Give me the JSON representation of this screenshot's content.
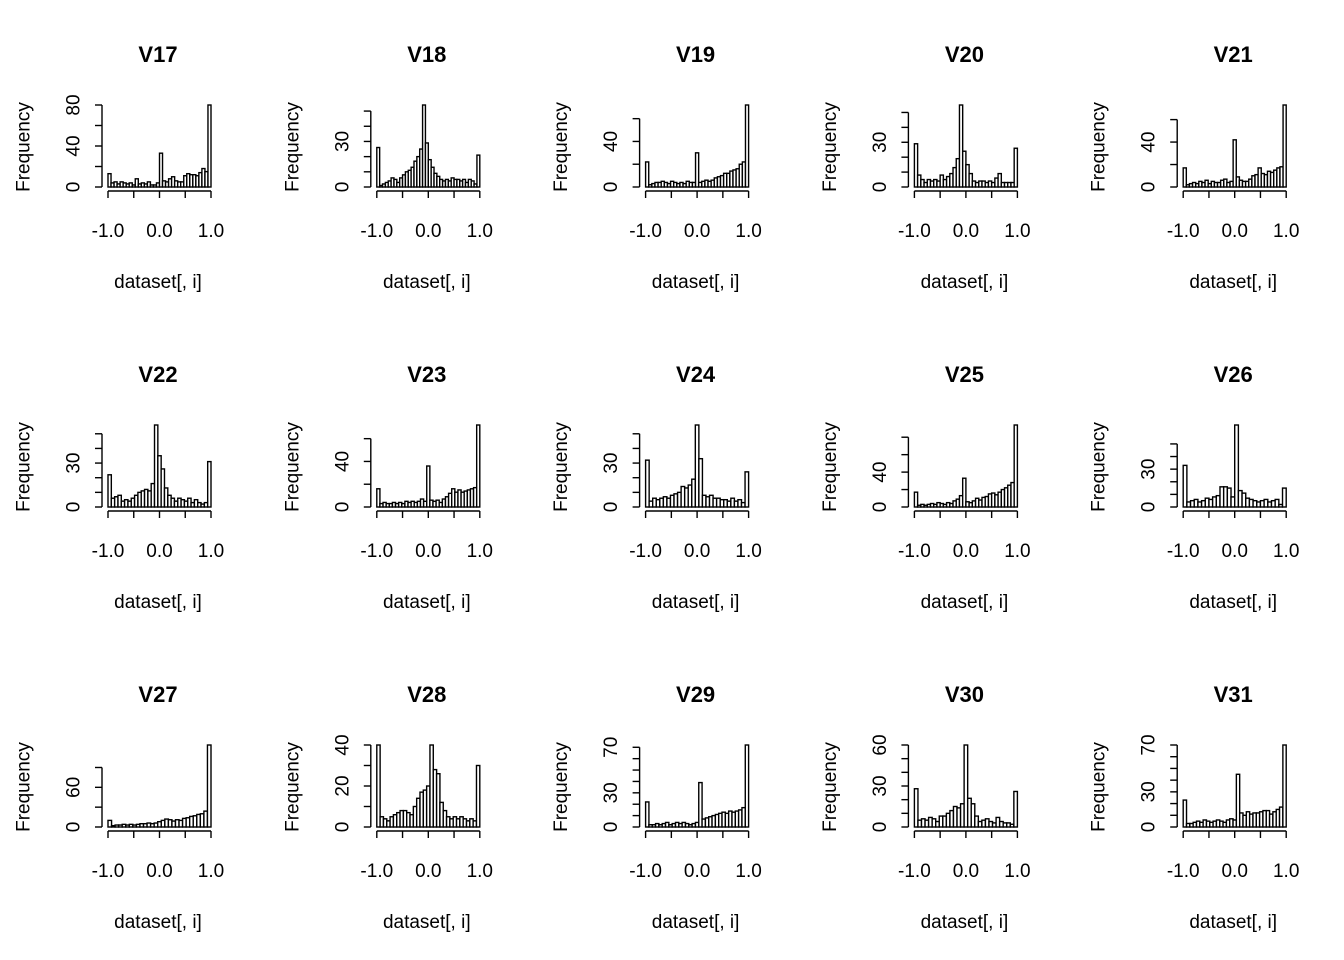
{
  "chart_data": [
    {
      "type": "bar",
      "title": "V17",
      "xlabel": "dataset[, i]",
      "ylabel": "Frequency",
      "xlim": [
        -1.0,
        1.0
      ],
      "x_ticks": [
        -1.0,
        -0.5,
        0.0,
        0.5,
        1.0
      ],
      "x_tick_labels": [
        "-1.0",
        "",
        "0.0",
        "",
        "1.0"
      ],
      "y_ticks": [
        0,
        20,
        40,
        60,
        80
      ],
      "y_tick_labels": [
        "0",
        "",
        "40",
        "",
        "80"
      ],
      "bin_width": 0.05,
      "values": [
        13,
        4,
        5,
        3,
        5,
        4,
        3,
        4,
        2,
        8,
        3,
        4,
        3,
        5,
        2,
        2,
        4,
        33,
        6,
        5,
        8,
        10,
        6,
        5,
        5,
        11,
        13,
        12,
        12,
        11,
        14,
        18,
        15,
        80
      ]
    },
    {
      "type": "bar",
      "title": "V18",
      "xlabel": "dataset[, i]",
      "ylabel": "Frequency",
      "xlim": [
        -1.0,
        1.0
      ],
      "x_ticks": [
        -1.0,
        -0.5,
        0.0,
        0.5,
        1.0
      ],
      "x_tick_labels": [
        "-1.0",
        "",
        "0.0",
        "",
        "1.0"
      ],
      "y_ticks": [
        0,
        10,
        20,
        30,
        40,
        50
      ],
      "y_tick_labels": [
        "0",
        "",
        "",
        "30",
        "",
        ""
      ],
      "bin_width": 0.05,
      "values": [
        26,
        1,
        2,
        3,
        4,
        6,
        5,
        3,
        6,
        8,
        10,
        11,
        13,
        17,
        20,
        25,
        54,
        29,
        18,
        13,
        9,
        7,
        5,
        4,
        5,
        4,
        6,
        5,
        5,
        4,
        5,
        3,
        5,
        4,
        2,
        21
      ]
    },
    {
      "type": "bar",
      "title": "V19",
      "xlabel": "dataset[, i]",
      "ylabel": "Frequency",
      "xlim": [
        -1.0,
        1.0
      ],
      "x_ticks": [
        -1.0,
        -0.5,
        0.0,
        0.5,
        1.0
      ],
      "x_tick_labels": [
        "-1.0",
        "",
        "0.0",
        "",
        "1.0"
      ],
      "y_ticks": [
        0,
        20,
        40,
        60
      ],
      "y_tick_labels": [
        "0",
        "",
        "40",
        ""
      ],
      "bin_width": 0.05,
      "values": [
        22,
        2,
        3,
        4,
        4,
        5,
        4,
        3,
        5,
        4,
        3,
        4,
        3,
        5,
        4,
        4,
        30,
        4,
        5,
        6,
        5,
        6,
        8,
        9,
        10,
        12,
        12,
        14,
        15,
        16,
        20,
        22,
        72
      ]
    },
    {
      "type": "bar",
      "title": "V20",
      "xlabel": "dataset[, i]",
      "ylabel": "Frequency",
      "xlim": [
        -1.0,
        1.0
      ],
      "x_ticks": [
        -1.0,
        -0.5,
        0.0,
        0.5,
        1.0
      ],
      "x_tick_labels": [
        "-1.0",
        "",
        "0.0",
        "",
        "1.0"
      ],
      "y_ticks": [
        0,
        10,
        20,
        30,
        40,
        50
      ],
      "y_tick_labels": [
        "0",
        "",
        "",
        "30",
        "",
        ""
      ],
      "bin_width": 0.05,
      "values": [
        29,
        8,
        5,
        3,
        5,
        4,
        5,
        4,
        8,
        5,
        7,
        9,
        13,
        19,
        55,
        24,
        15,
        9,
        4,
        3,
        4,
        4,
        3,
        4,
        3,
        6,
        9,
        3,
        3,
        3,
        3,
        26
      ]
    },
    {
      "type": "bar",
      "title": "V21",
      "xlabel": "dataset[, i]",
      "ylabel": "Frequency",
      "xlim": [
        -1.0,
        1.0
      ],
      "x_ticks": [
        -1.0,
        -0.5,
        0.0,
        0.5,
        1.0
      ],
      "x_tick_labels": [
        "-1.0",
        "",
        "0.0",
        "",
        "1.0"
      ],
      "y_ticks": [
        0,
        20,
        40,
        60
      ],
      "y_tick_labels": [
        "0",
        "",
        "40",
        ""
      ],
      "bin_width": 0.05,
      "values": [
        17,
        2,
        3,
        4,
        3,
        5,
        4,
        6,
        3,
        5,
        4,
        4,
        6,
        7,
        4,
        5,
        42,
        9,
        6,
        5,
        5,
        7,
        10,
        11,
        17,
        12,
        11,
        14,
        13,
        15,
        17,
        18,
        73
      ]
    },
    {
      "type": "bar",
      "title": "V22",
      "xlabel": "dataset[, i]",
      "ylabel": "Frequency",
      "xlim": [
        -1.0,
        1.0
      ],
      "x_ticks": [
        -1.0,
        -0.5,
        0.0,
        0.5,
        1.0
      ],
      "x_tick_labels": [
        "-1.0",
        "",
        "0.0",
        "",
        "1.0"
      ],
      "y_ticks": [
        0,
        10,
        20,
        30,
        40,
        50
      ],
      "y_tick_labels": [
        "0",
        "",
        "",
        "30",
        "",
        ""
      ],
      "bin_width": 0.05,
      "values": [
        22,
        6,
        7,
        8,
        4,
        5,
        4,
        6,
        8,
        10,
        11,
        12,
        11,
        16,
        56,
        35,
        26,
        13,
        8,
        6,
        4,
        6,
        5,
        4,
        6,
        3,
        5,
        3,
        2,
        3,
        31
      ]
    },
    {
      "type": "bar",
      "title": "V23",
      "xlabel": "dataset[, i]",
      "ylabel": "Frequency",
      "xlim": [
        -1.0,
        1.0
      ],
      "x_ticks": [
        -1.0,
        -0.5,
        0.0,
        0.5,
        1.0
      ],
      "x_tick_labels": [
        "-1.0",
        "",
        "0.0",
        "",
        "1.0"
      ],
      "y_ticks": [
        0,
        20,
        40,
        60
      ],
      "y_tick_labels": [
        "0",
        "",
        "40",
        ""
      ],
      "bin_width": 0.05,
      "values": [
        16,
        3,
        4,
        3,
        3,
        4,
        3,
        4,
        3,
        5,
        4,
        5,
        4,
        5,
        7,
        5,
        36,
        6,
        5,
        6,
        4,
        7,
        9,
        12,
        16,
        13,
        15,
        13,
        14,
        15,
        16,
        17,
        72
      ]
    },
    {
      "type": "bar",
      "title": "V24",
      "xlabel": "dataset[, i]",
      "ylabel": "Frequency",
      "xlim": [
        -1.0,
        1.0
      ],
      "x_ticks": [
        -1.0,
        -0.5,
        0.0,
        0.5,
        1.0
      ],
      "x_tick_labels": [
        "-1.0",
        "",
        "0.0",
        "",
        "1.0"
      ],
      "y_ticks": [
        0,
        10,
        20,
        30,
        40,
        50
      ],
      "y_tick_labels": [
        "0",
        "",
        "",
        "30",
        "",
        ""
      ],
      "bin_width": 0.05,
      "values": [
        32,
        4,
        6,
        5,
        6,
        7,
        6,
        8,
        9,
        10,
        14,
        13,
        15,
        19,
        56,
        33,
        8,
        7,
        8,
        6,
        6,
        5,
        5,
        4,
        6,
        4,
        5,
        3,
        24
      ]
    },
    {
      "type": "bar",
      "title": "V25",
      "xlabel": "dataset[, i]",
      "ylabel": "Frequency",
      "xlim": [
        -1.0,
        1.0
      ],
      "x_ticks": [
        -1.0,
        -0.5,
        0.0,
        0.5,
        1.0
      ],
      "x_tick_labels": [
        "-1.0",
        "",
        "0.0",
        "",
        "1.0"
      ],
      "y_ticks": [
        0,
        20,
        40,
        60,
        80
      ],
      "y_tick_labels": [
        "0",
        "",
        "40",
        "",
        ""
      ],
      "bin_width": 0.05,
      "values": [
        17,
        2,
        3,
        2,
        3,
        4,
        3,
        5,
        4,
        3,
        5,
        4,
        7,
        9,
        13,
        33,
        6,
        5,
        7,
        10,
        8,
        11,
        12,
        15,
        16,
        14,
        17,
        20,
        22,
        25,
        28,
        94
      ]
    },
    {
      "type": "bar",
      "title": "V26",
      "xlabel": "dataset[, i]",
      "ylabel": "Frequency",
      "xlim": [
        -1.0,
        1.0
      ],
      "x_ticks": [
        -1.0,
        -0.5,
        0.0,
        0.5,
        1.0
      ],
      "x_tick_labels": [
        "-1.0",
        "",
        "0.0",
        "",
        "1.0"
      ],
      "y_ticks": [
        0,
        10,
        20,
        30,
        40,
        50
      ],
      "y_tick_labels": [
        "0",
        "",
        "",
        "30",
        "",
        ""
      ],
      "bin_width": 0.05,
      "values": [
        33,
        4,
        5,
        6,
        4,
        5,
        7,
        6,
        8,
        9,
        16,
        16,
        15,
        8,
        65,
        13,
        11,
        7,
        6,
        5,
        4,
        5,
        6,
        4,
        5,
        6,
        2,
        15
      ]
    },
    {
      "type": "bar",
      "title": "V27",
      "xlabel": "dataset[, i]",
      "ylabel": "Frequency",
      "xlim": [
        -1.0,
        1.0
      ],
      "x_ticks": [
        -1.0,
        -0.5,
        0.0,
        0.5,
        1.0
      ],
      "x_tick_labels": [
        "-1.0",
        "",
        "0.0",
        "",
        "1.0"
      ],
      "y_ticks": [
        0,
        30,
        60,
        90
      ],
      "y_tick_labels": [
        "0",
        "",
        "60",
        ""
      ],
      "bin_width": 0.05,
      "values": [
        10,
        2,
        3,
        3,
        4,
        3,
        4,
        3,
        4,
        5,
        5,
        6,
        5,
        6,
        8,
        10,
        12,
        11,
        9,
        11,
        10,
        13,
        14,
        16,
        17,
        19,
        20,
        24,
        124
      ]
    },
    {
      "type": "bar",
      "title": "V28",
      "xlabel": "dataset[, i]",
      "ylabel": "Frequency",
      "xlim": [
        -1.0,
        1.0
      ],
      "x_ticks": [
        -1.0,
        -0.5,
        0.0,
        0.5,
        1.0
      ],
      "x_tick_labels": [
        "-1.0",
        "",
        "0.0",
        "",
        "1.0"
      ],
      "y_ticks": [
        0,
        10,
        20,
        30,
        40
      ],
      "y_tick_labels": [
        "0",
        "",
        "20",
        "",
        "40"
      ],
      "bin_width": 0.05,
      "values": [
        40,
        5,
        4,
        3,
        5,
        6,
        7,
        8,
        8,
        7,
        6,
        10,
        14,
        17,
        18,
        20,
        40,
        28,
        26,
        12,
        8,
        5,
        4,
        5,
        4,
        5,
        4,
        3,
        4,
        3,
        30
      ]
    },
    {
      "type": "bar",
      "title": "V29",
      "xlabel": "dataset[, i]",
      "ylabel": "Frequency",
      "xlim": [
        -1.0,
        1.0
      ],
      "x_ticks": [
        -1.0,
        -0.5,
        0.0,
        0.5,
        1.0
      ],
      "x_tick_labels": [
        "-1.0",
        "",
        "0.0",
        "",
        "1.0"
      ],
      "y_ticks": [
        0,
        10,
        20,
        30,
        40,
        50,
        60,
        70
      ],
      "y_tick_labels": [
        "0",
        "",
        "",
        "30",
        "",
        "",
        "",
        "70"
      ],
      "bin_width": 0.05,
      "values": [
        22,
        2,
        2,
        3,
        2,
        3,
        4,
        2,
        3,
        4,
        3,
        4,
        3,
        2,
        3,
        4,
        39,
        7,
        8,
        9,
        10,
        11,
        12,
        13,
        12,
        14,
        13,
        14,
        15,
        17,
        72
      ]
    },
    {
      "type": "bar",
      "title": "V30",
      "xlabel": "dataset[, i]",
      "ylabel": "Frequency",
      "xlim": [
        -1.0,
        1.0
      ],
      "x_ticks": [
        -1.0,
        -0.5,
        0.0,
        0.5,
        1.0
      ],
      "x_tick_labels": [
        "-1.0",
        "",
        "0.0",
        "",
        "1.0"
      ],
      "y_ticks": [
        0,
        10,
        20,
        30,
        40,
        50,
        60
      ],
      "y_tick_labels": [
        "0",
        "",
        "",
        "30",
        "",
        "",
        "60"
      ],
      "bin_width": 0.05,
      "values": [
        28,
        5,
        6,
        5,
        7,
        6,
        4,
        8,
        8,
        10,
        12,
        15,
        14,
        17,
        60,
        21,
        17,
        8,
        4,
        5,
        6,
        4,
        3,
        7,
        4,
        3,
        3,
        2,
        26
      ]
    },
    {
      "type": "bar",
      "title": "V31",
      "xlabel": "dataset[, i]",
      "ylabel": "Frequency",
      "xlim": [
        -1.0,
        1.0
      ],
      "x_ticks": [
        -1.0,
        -0.5,
        0.0,
        0.5,
        1.0
      ],
      "x_tick_labels": [
        "-1.0",
        "",
        "0.0",
        "",
        "1.0"
      ],
      "y_ticks": [
        0,
        10,
        20,
        30,
        40,
        50,
        60,
        70
      ],
      "y_tick_labels": [
        "0",
        "",
        "",
        "30",
        "",
        "",
        "",
        "70"
      ],
      "bin_width": 0.05,
      "values": [
        23,
        3,
        3,
        4,
        5,
        4,
        6,
        5,
        4,
        5,
        6,
        5,
        4,
        6,
        7,
        6,
        45,
        12,
        10,
        13,
        11,
        12,
        12,
        13,
        14,
        14,
        11,
        13,
        15,
        17,
        70
      ]
    }
  ]
}
